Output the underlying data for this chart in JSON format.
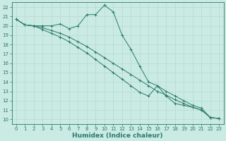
{
  "title": "",
  "xlabel": "Humidex (Indice chaleur)",
  "bg_color": "#caeae4",
  "grid_color_major": "#b8d8d0",
  "grid_color_minor": "#d0eae4",
  "line_color": "#2a7a68",
  "spine_color": "#2a7a68",
  "xlim": [
    -0.5,
    23.5
  ],
  "ylim": [
    9.5,
    22.5
  ],
  "xticks": [
    0,
    1,
    2,
    3,
    4,
    5,
    6,
    7,
    8,
    9,
    10,
    11,
    12,
    13,
    14,
    15,
    16,
    17,
    18,
    19,
    20,
    21,
    22,
    23
  ],
  "yticks": [
    10,
    11,
    12,
    13,
    14,
    15,
    16,
    17,
    18,
    19,
    20,
    21,
    22
  ],
  "line1": {
    "x": [
      0,
      1,
      2,
      3,
      4,
      5,
      6,
      7,
      8,
      9,
      10,
      11,
      12,
      13,
      14,
      15,
      16,
      17,
      18,
      19,
      20,
      21,
      22,
      23
    ],
    "y": [
      20.7,
      20.1,
      20.0,
      20.0,
      20.0,
      20.2,
      19.7,
      20.0,
      21.2,
      21.2,
      22.2,
      21.5,
      19.0,
      17.5,
      15.7,
      14.0,
      13.6,
      13.0,
      12.5,
      12.0,
      11.5,
      11.2,
      10.2,
      10.1
    ]
  },
  "line2": {
    "x": [
      0,
      1,
      2,
      3,
      4,
      5,
      6,
      7,
      8,
      9,
      10,
      11,
      12,
      13,
      14,
      15,
      16,
      17,
      18,
      19,
      20,
      21,
      22,
      23
    ],
    "y": [
      20.7,
      20.1,
      20.0,
      19.8,
      19.5,
      19.2,
      18.8,
      18.3,
      17.8,
      17.2,
      16.6,
      16.0,
      15.4,
      14.8,
      14.2,
      13.6,
      13.0,
      12.6,
      12.1,
      11.7,
      11.3,
      11.0,
      10.2,
      10.1
    ]
  },
  "line3": {
    "x": [
      0,
      1,
      2,
      3,
      4,
      5,
      6,
      7,
      8,
      9,
      10,
      11,
      12,
      13,
      14,
      15,
      16,
      17,
      18,
      19,
      20,
      21,
      22,
      23
    ],
    "y": [
      20.7,
      20.1,
      20.0,
      19.6,
      19.2,
      18.8,
      18.3,
      17.7,
      17.1,
      16.4,
      15.7,
      15.0,
      14.3,
      13.6,
      12.9,
      12.5,
      13.6,
      12.5,
      11.7,
      11.5,
      11.3,
      11.0,
      10.2,
      10.1
    ]
  },
  "tick_fontsize": 5,
  "xlabel_fontsize": 6.5,
  "linewidth": 0.7,
  "markersize": 2.2,
  "markeredgewidth": 0.7
}
